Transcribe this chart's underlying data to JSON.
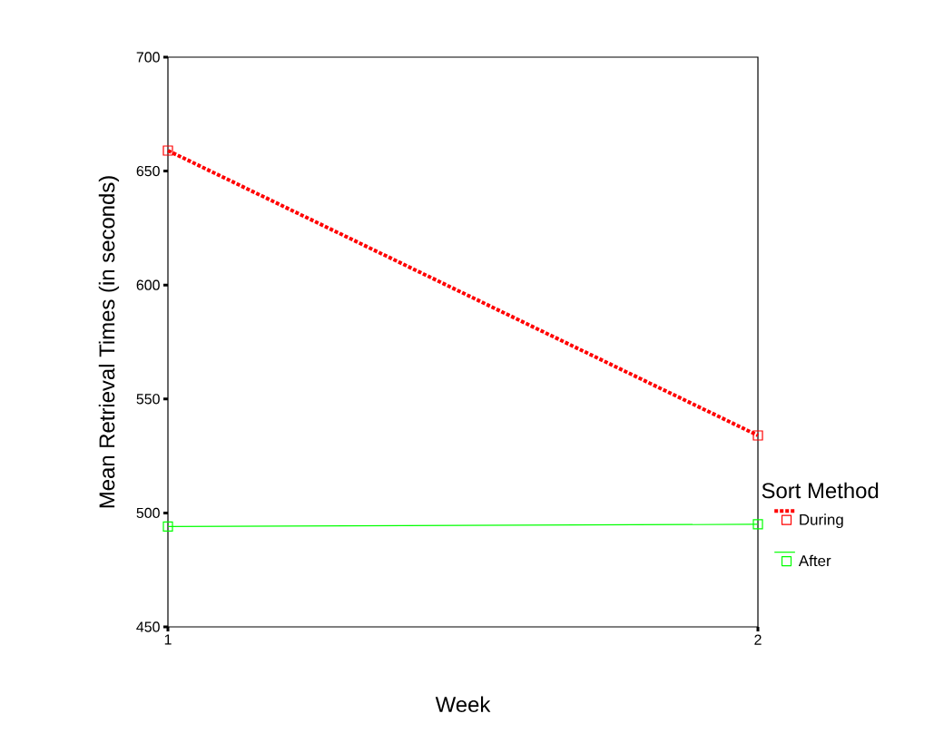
{
  "chart_data": {
    "type": "line",
    "xlabel": "Week",
    "ylabel": "Mean Retrieval Times (in seconds)",
    "legend_title": "Sort Method",
    "x": [
      1,
      2
    ],
    "xlim": [
      1,
      2
    ],
    "xticks": [
      1,
      2
    ],
    "series": [
      {
        "name": "During",
        "color": "#ff0000",
        "values": [
          659,
          534
        ],
        "line_style": "dashed"
      },
      {
        "name": "After",
        "color": "#00ff00",
        "values": [
          494,
          495
        ],
        "line_style": "solid"
      }
    ],
    "ylim": [
      450,
      700
    ],
    "yticks": [
      450,
      500,
      550,
      600,
      650,
      700
    ],
    "marker": "square",
    "legend": "right",
    "grid": false
  }
}
